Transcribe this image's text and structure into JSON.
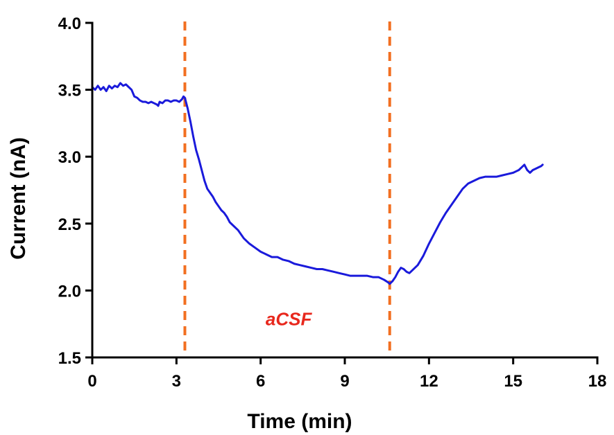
{
  "chart_data": {
    "type": "line",
    "title": "",
    "xlabel": "Time (min)",
    "ylabel": "Current (nA)",
    "xlim": [
      0,
      18
    ],
    "ylim": [
      1.5,
      4.0
    ],
    "x_ticks": [
      0,
      3,
      6,
      9,
      12,
      15,
      18
    ],
    "x_tick_labels": [
      "0",
      "3",
      "6",
      "9",
      "12",
      "15",
      "18"
    ],
    "y_ticks": [
      1.5,
      2.0,
      2.5,
      3.0,
      3.5,
      4.0
    ],
    "y_tick_labels": [
      "1.5",
      "2.0",
      "2.5",
      "3.0",
      "3.5",
      "4.0"
    ],
    "grid": false,
    "series": [
      {
        "color": "#1a1adb",
        "x": [
          0.0,
          0.1,
          0.2,
          0.3,
          0.4,
          0.5,
          0.6,
          0.7,
          0.8,
          0.9,
          1.0,
          1.1,
          1.2,
          1.3,
          1.4,
          1.5,
          1.6,
          1.7,
          1.8,
          1.9,
          2.0,
          2.1,
          2.2,
          2.3,
          2.35,
          2.4,
          2.5,
          2.6,
          2.7,
          2.8,
          2.9,
          3.0,
          3.1,
          3.2,
          3.25,
          3.3,
          3.4,
          3.5,
          3.6,
          3.7,
          3.8,
          3.9,
          4.0,
          4.1,
          4.2,
          4.3,
          4.4,
          4.5,
          4.6,
          4.7,
          4.8,
          4.9,
          5.0,
          5.2,
          5.4,
          5.6,
          5.8,
          6.0,
          6.2,
          6.4,
          6.6,
          6.8,
          7.0,
          7.2,
          7.4,
          7.6,
          7.8,
          8.0,
          8.2,
          8.4,
          8.6,
          8.8,
          9.0,
          9.2,
          9.4,
          9.6,
          9.8,
          10.0,
          10.2,
          10.4,
          10.55,
          10.6,
          10.7,
          10.8,
          10.9,
          11.0,
          11.1,
          11.2,
          11.3,
          11.4,
          11.5,
          11.6,
          11.8,
          12.0,
          12.2,
          12.4,
          12.6,
          12.8,
          13.0,
          13.2,
          13.4,
          13.6,
          13.8,
          14.0,
          14.2,
          14.4,
          14.6,
          14.8,
          15.0,
          15.1,
          15.2,
          15.3,
          15.4,
          15.5,
          15.6,
          15.7,
          15.8,
          15.9,
          16.0,
          16.05
        ],
        "y": [
          3.52,
          3.5,
          3.53,
          3.5,
          3.52,
          3.49,
          3.53,
          3.51,
          3.53,
          3.52,
          3.55,
          3.53,
          3.54,
          3.52,
          3.5,
          3.45,
          3.44,
          3.42,
          3.41,
          3.41,
          3.4,
          3.41,
          3.4,
          3.39,
          3.38,
          3.41,
          3.4,
          3.42,
          3.42,
          3.41,
          3.42,
          3.42,
          3.41,
          3.43,
          3.45,
          3.44,
          3.36,
          3.26,
          3.15,
          3.05,
          2.98,
          2.9,
          2.82,
          2.76,
          2.73,
          2.7,
          2.66,
          2.63,
          2.6,
          2.58,
          2.55,
          2.51,
          2.49,
          2.45,
          2.39,
          2.35,
          2.32,
          2.29,
          2.27,
          2.25,
          2.25,
          2.23,
          2.22,
          2.2,
          2.19,
          2.18,
          2.17,
          2.16,
          2.16,
          2.15,
          2.14,
          2.13,
          2.12,
          2.11,
          2.11,
          2.11,
          2.11,
          2.1,
          2.1,
          2.08,
          2.06,
          2.05,
          2.07,
          2.1,
          2.14,
          2.17,
          2.16,
          2.14,
          2.13,
          2.15,
          2.17,
          2.19,
          2.26,
          2.35,
          2.43,
          2.51,
          2.58,
          2.64,
          2.7,
          2.76,
          2.8,
          2.82,
          2.84,
          2.85,
          2.85,
          2.85,
          2.86,
          2.87,
          2.88,
          2.89,
          2.9,
          2.92,
          2.94,
          2.9,
          2.88,
          2.9,
          2.91,
          2.92,
          2.93,
          2.94
        ]
      }
    ],
    "vertical_lines": [
      {
        "x": 3.3,
        "color": "#f26f21",
        "style": "dashed"
      },
      {
        "x": 10.6,
        "color": "#f26f21",
        "style": "dashed"
      }
    ],
    "annotations": [
      {
        "text": "aCSF",
        "x": 7.0,
        "y": 1.74,
        "color": "#e8281d"
      }
    ]
  }
}
